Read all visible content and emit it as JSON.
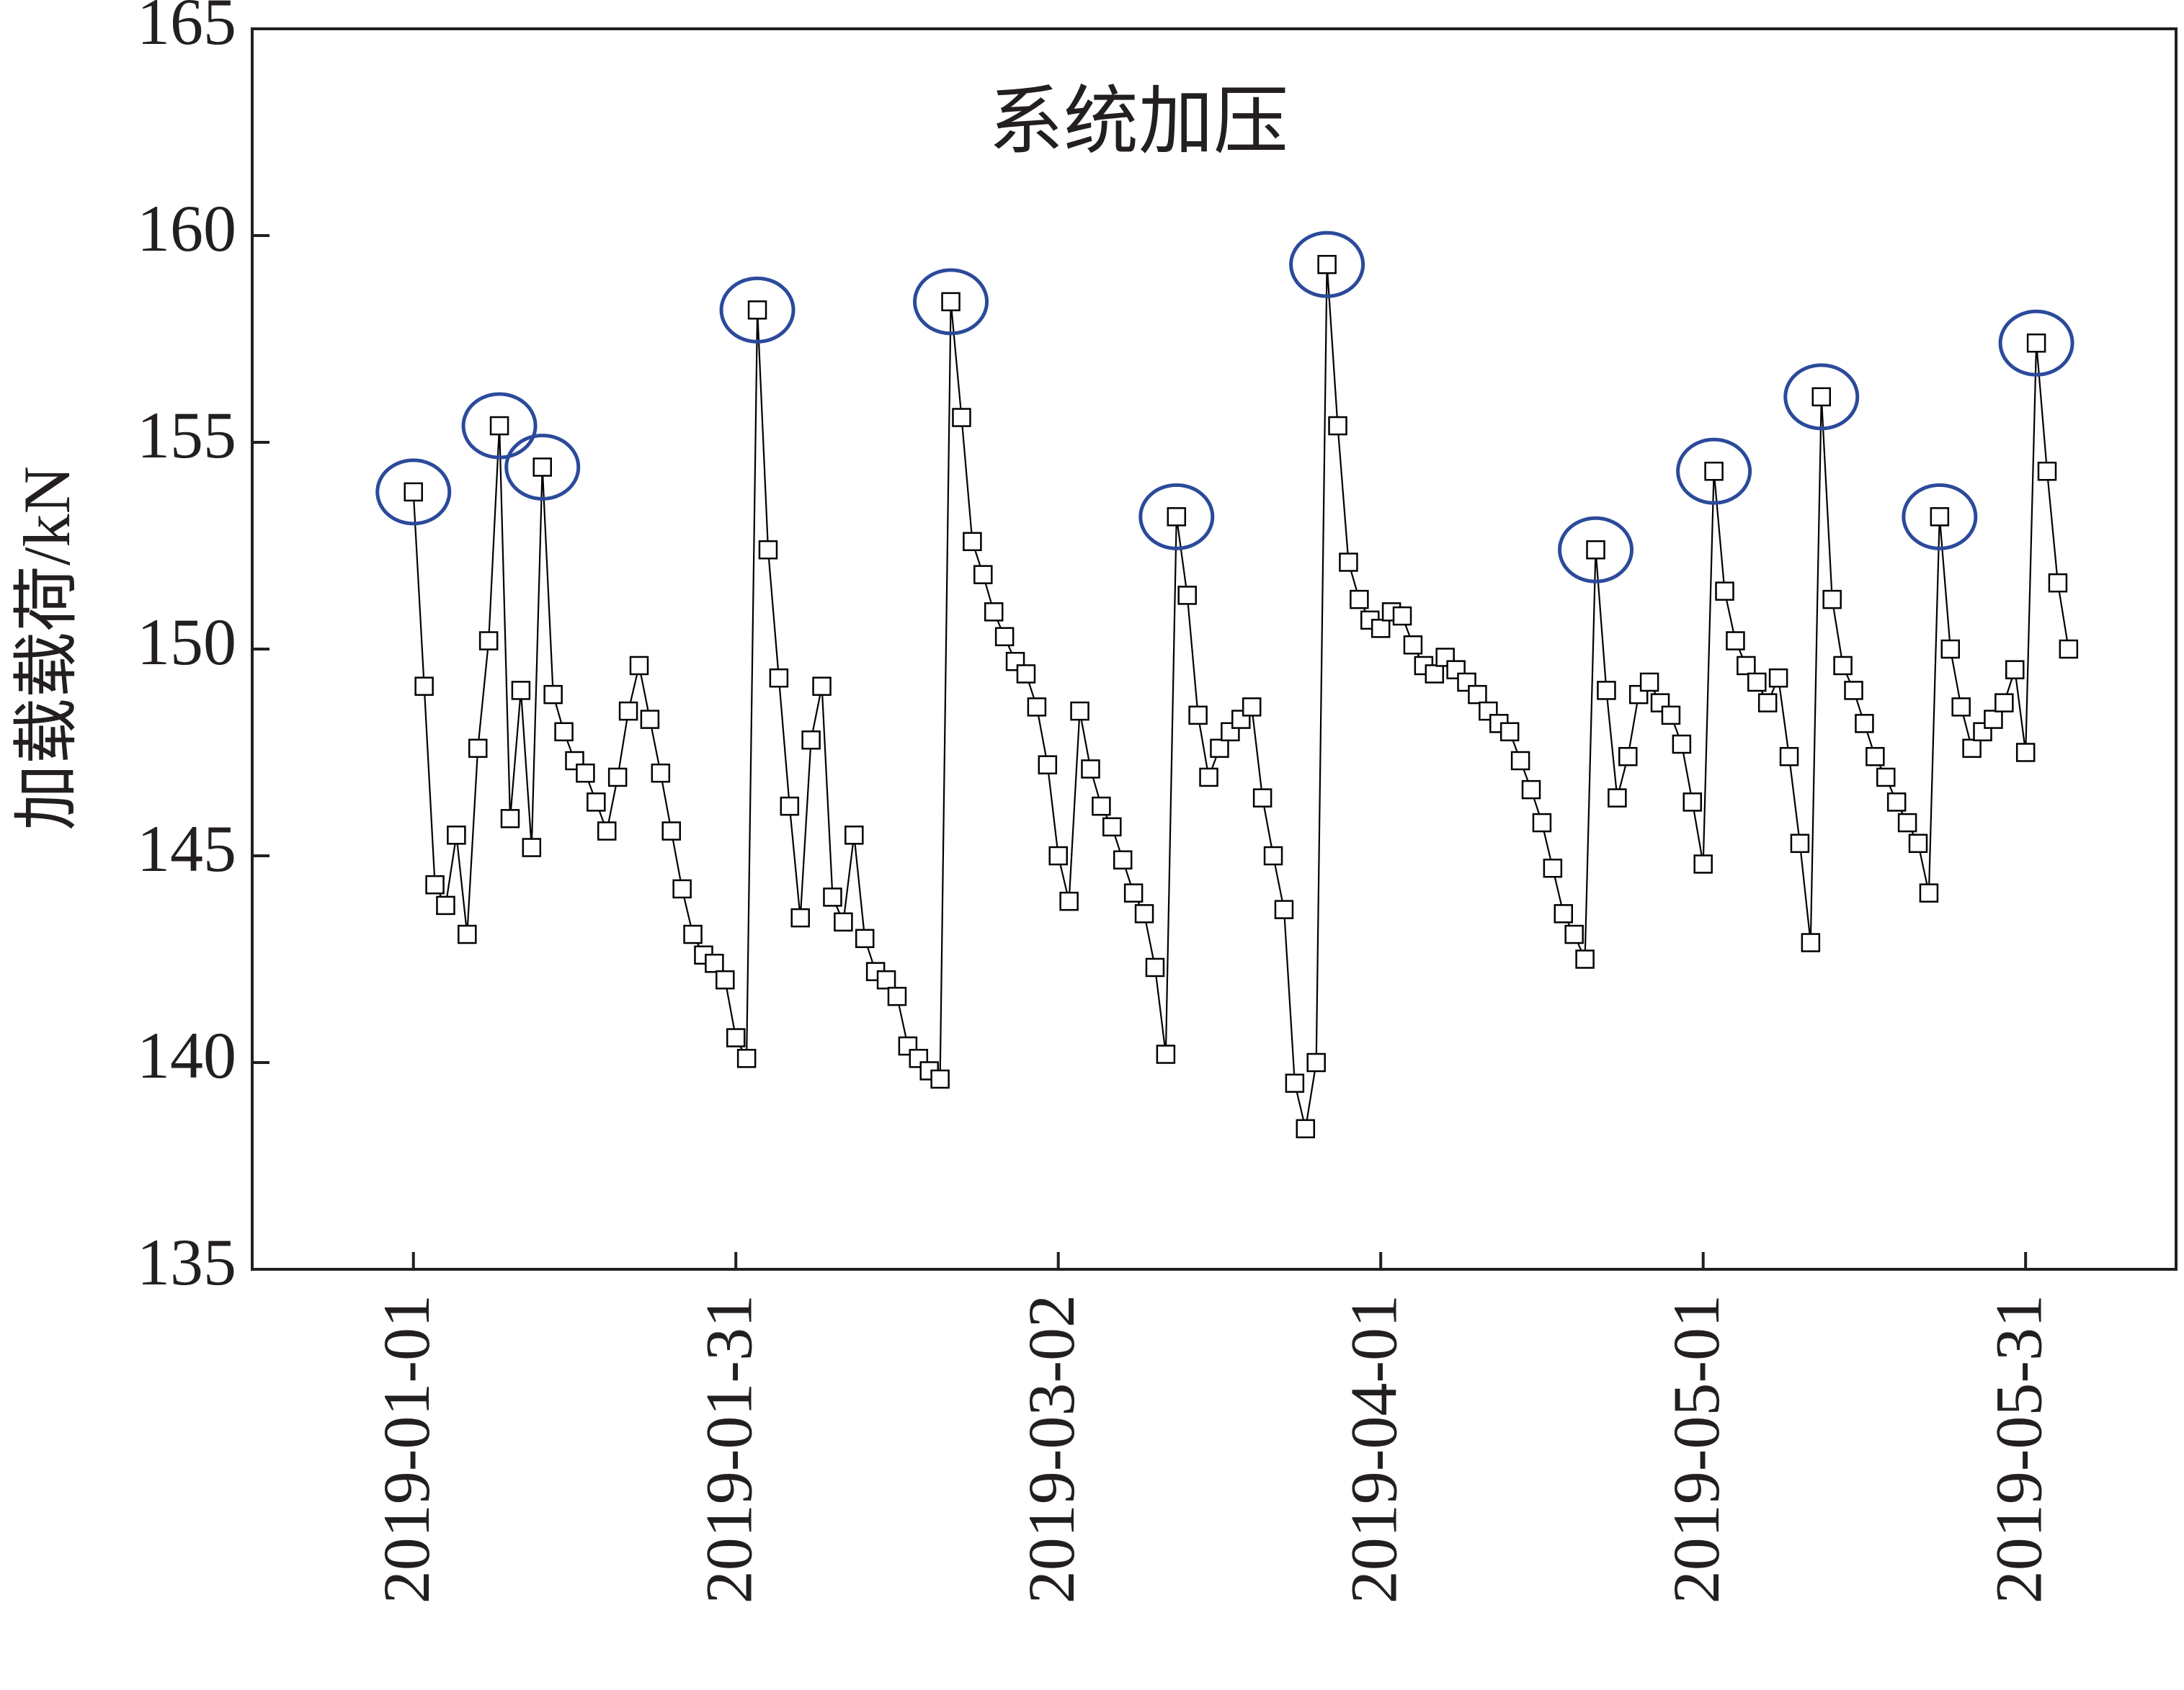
{
  "chart_data": {
    "type": "line",
    "ylabel": "加载载荷/kN",
    "annotation": "系统加压",
    "annotation_color": "#2b4a9b",
    "color": "#000000",
    "marker": "square",
    "xlim": [
      "2018-12-17",
      "2019-06-14"
    ],
    "xticks": [
      "2019-01-01",
      "2019-01-31",
      "2019-03-02",
      "2019-04-01",
      "2019-05-01",
      "2019-05-31"
    ],
    "ylim": [
      135,
      165
    ],
    "yticks": [
      135,
      140,
      145,
      150,
      155,
      160,
      165
    ],
    "x": [
      "2019-01-01",
      "2019-01-02",
      "2019-01-03",
      "2019-01-04",
      "2019-01-05",
      "2019-01-06",
      "2019-01-07",
      "2019-01-08",
      "2019-01-09",
      "2019-01-10",
      "2019-01-11",
      "2019-01-12",
      "2019-01-13",
      "2019-01-14",
      "2019-01-15",
      "2019-01-16",
      "2019-01-17",
      "2019-01-18",
      "2019-01-19",
      "2019-01-20",
      "2019-01-21",
      "2019-01-22",
      "2019-01-23",
      "2019-01-24",
      "2019-01-25",
      "2019-01-26",
      "2019-01-27",
      "2019-01-28",
      "2019-01-29",
      "2019-01-30",
      "2019-01-31",
      "2019-02-01",
      "2019-02-02",
      "2019-02-03",
      "2019-02-04",
      "2019-02-05",
      "2019-02-06",
      "2019-02-07",
      "2019-02-08",
      "2019-02-09",
      "2019-02-10",
      "2019-02-11",
      "2019-02-12",
      "2019-02-13",
      "2019-02-14",
      "2019-02-15",
      "2019-02-16",
      "2019-02-17",
      "2019-02-18",
      "2019-02-19",
      "2019-02-20",
      "2019-02-21",
      "2019-02-22",
      "2019-02-23",
      "2019-02-24",
      "2019-02-25",
      "2019-02-26",
      "2019-02-27",
      "2019-02-28",
      "2019-03-01",
      "2019-03-02",
      "2019-03-03",
      "2019-03-04",
      "2019-03-05",
      "2019-03-06",
      "2019-03-07",
      "2019-03-08",
      "2019-03-09",
      "2019-03-10",
      "2019-03-11",
      "2019-03-12",
      "2019-03-13",
      "2019-03-14",
      "2019-03-15",
      "2019-03-16",
      "2019-03-17",
      "2019-03-18",
      "2019-03-19",
      "2019-03-20",
      "2019-03-21",
      "2019-03-22",
      "2019-03-23",
      "2019-03-24",
      "2019-03-25",
      "2019-03-26",
      "2019-03-27",
      "2019-03-28",
      "2019-03-29",
      "2019-03-30",
      "2019-03-31",
      "2019-04-01",
      "2019-04-02",
      "2019-04-03",
      "2019-04-04",
      "2019-04-05",
      "2019-04-06",
      "2019-04-07",
      "2019-04-08",
      "2019-04-09",
      "2019-04-10",
      "2019-04-11",
      "2019-04-12",
      "2019-04-13",
      "2019-04-14",
      "2019-04-15",
      "2019-04-16",
      "2019-04-17",
      "2019-04-18",
      "2019-04-19",
      "2019-04-20",
      "2019-04-21",
      "2019-04-22",
      "2019-04-23",
      "2019-04-24",
      "2019-04-25",
      "2019-04-26",
      "2019-04-27",
      "2019-04-28",
      "2019-04-29",
      "2019-04-30",
      "2019-05-01",
      "2019-05-02",
      "2019-05-03",
      "2019-05-04",
      "2019-05-05",
      "2019-05-06",
      "2019-05-07",
      "2019-05-08",
      "2019-05-09",
      "2019-05-10",
      "2019-05-11",
      "2019-05-12",
      "2019-05-13",
      "2019-05-14",
      "2019-05-15",
      "2019-05-16",
      "2019-05-17",
      "2019-05-18",
      "2019-05-19",
      "2019-05-20",
      "2019-05-21",
      "2019-05-22",
      "2019-05-23",
      "2019-05-24",
      "2019-05-25",
      "2019-05-26",
      "2019-05-27",
      "2019-05-28",
      "2019-05-29",
      "2019-05-30",
      "2019-05-31",
      "2019-06-01",
      "2019-06-02",
      "2019-06-03",
      "2019-06-04"
    ],
    "values": [
      153.8,
      149.1,
      144.3,
      143.8,
      145.5,
      143.1,
      147.6,
      150.2,
      155.4,
      145.9,
      149.0,
      145.2,
      154.4,
      148.9,
      148.0,
      147.3,
      147.0,
      146.3,
      145.6,
      146.9,
      148.5,
      149.6,
      148.3,
      147.0,
      145.6,
      144.2,
      143.1,
      142.6,
      142.4,
      142.0,
      140.6,
      140.1,
      158.2,
      152.4,
      149.3,
      146.2,
      143.5,
      147.8,
      149.1,
      144.0,
      143.4,
      145.5,
      143.0,
      142.2,
      142.0,
      141.6,
      140.4,
      140.1,
      139.8,
      139.6,
      158.4,
      155.6,
      152.6,
      151.8,
      150.9,
      150.3,
      149.7,
      149.4,
      148.6,
      147.2,
      145.0,
      143.9,
      148.5,
      147.1,
      146.2,
      145.7,
      144.9,
      144.1,
      143.6,
      142.3,
      140.2,
      153.2,
      151.3,
      148.4,
      146.9,
      147.6,
      148.0,
      148.3,
      148.6,
      146.4,
      145.0,
      143.7,
      139.5,
      138.4,
      140.0,
      159.3,
      155.4,
      152.1,
      151.2,
      150.7,
      150.5,
      150.9,
      150.8,
      150.1,
      149.6,
      149.4,
      149.8,
      149.5,
      149.2,
      148.9,
      148.5,
      148.2,
      148.0,
      147.3,
      146.6,
      145.8,
      144.7,
      143.6,
      143.1,
      142.5,
      152.4,
      149.0,
      146.4,
      147.4,
      148.9,
      149.2,
      148.7,
      148.4,
      147.7,
      146.3,
      144.8,
      154.3,
      151.4,
      150.2,
      149.6,
      149.2,
      148.7,
      149.3,
      147.4,
      145.3,
      142.9,
      156.1,
      151.2,
      149.6,
      149.0,
      148.2,
      147.4,
      146.9,
      146.3,
      145.8,
      145.3,
      144.1,
      153.2,
      150.0,
      148.6,
      147.6,
      148.0,
      148.3,
      148.7,
      149.5,
      147.5,
      157.4,
      154.3,
      151.6,
      150.0
    ]
  }
}
